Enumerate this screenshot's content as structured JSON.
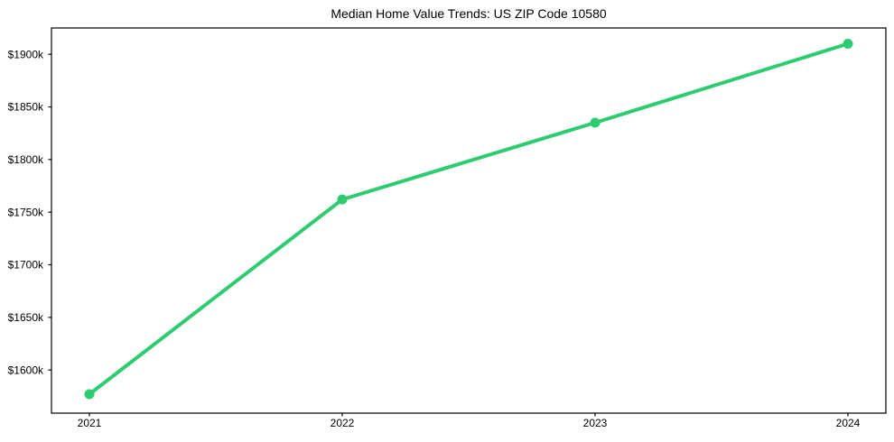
{
  "figure": {
    "background": "#ffffff"
  },
  "chart_data": {
    "type": "line",
    "title": "Median Home Value Trends: US ZIP Code 10580",
    "x": [
      2021,
      2022,
      2023,
      2024
    ],
    "x_tick_labels": [
      "2021",
      "2022",
      "2023",
      "2024"
    ],
    "series": [
      {
        "name": "median-home-value",
        "values": [
          1577,
          1762,
          1835,
          1910
        ],
        "color": "#2ecc71",
        "line_width": 4,
        "marker": "circle",
        "marker_diameter": 11
      }
    ],
    "y_ticks": [
      1600,
      1650,
      1700,
      1750,
      1800,
      1850,
      1900
    ],
    "y_tick_labels": [
      "$1600k",
      "$1650k",
      "$1700k",
      "$1750k",
      "$1800k",
      "$1850k",
      "$1900k"
    ],
    "xlabel": "",
    "ylabel": "",
    "xlim": [
      2020.85,
      2024.15
    ],
    "ylim": [
      1559,
      1925
    ],
    "grid": false,
    "legend": false,
    "axes_color": "#000000",
    "text_color": "#000000"
  }
}
